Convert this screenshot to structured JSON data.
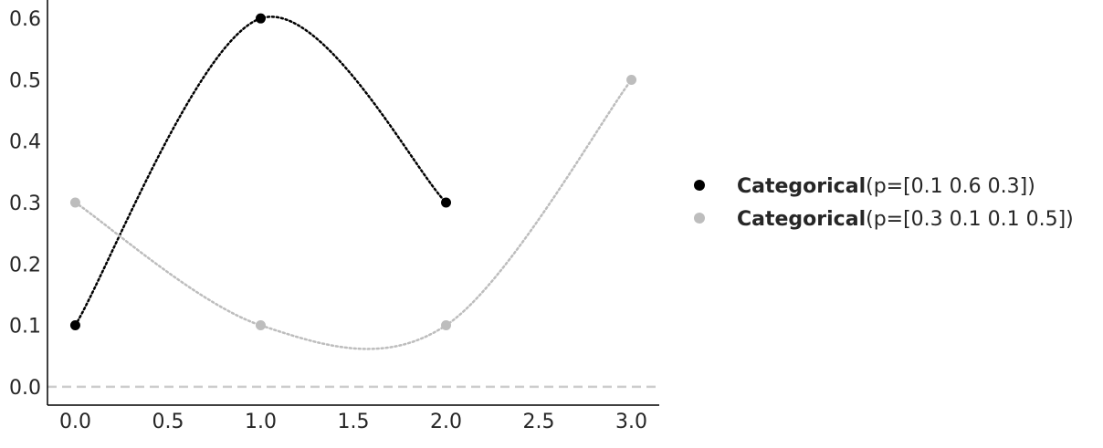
{
  "chart_data": {
    "type": "line",
    "title": "",
    "xlabel": "",
    "ylabel": "",
    "xlim": [
      -0.15,
      3.15
    ],
    "ylim": [
      -0.03,
      0.63
    ],
    "x_ticks": [
      "0.0",
      "0.5",
      "1.0",
      "1.5",
      "2.0",
      "2.5",
      "3.0"
    ],
    "y_ticks": [
      "0.0",
      "0.1",
      "0.2",
      "0.3",
      "0.4",
      "0.5",
      "0.6"
    ],
    "grid": false,
    "legend_position": "right",
    "baseline": 0,
    "series": [
      {
        "name_bold": "Categorical",
        "name_rest": "(p=[0.1 0.6 0.3])",
        "color": "#000000",
        "x": [
          0,
          1,
          2
        ],
        "y": [
          0.1,
          0.6,
          0.3
        ]
      },
      {
        "name_bold": "Categorical",
        "name_rest": "(p=[0.3 0.1 0.1 0.5])",
        "color": "#bdbdbd",
        "x": [
          0,
          1,
          2,
          3
        ],
        "y": [
          0.3,
          0.1,
          0.1,
          0.5
        ]
      }
    ]
  }
}
